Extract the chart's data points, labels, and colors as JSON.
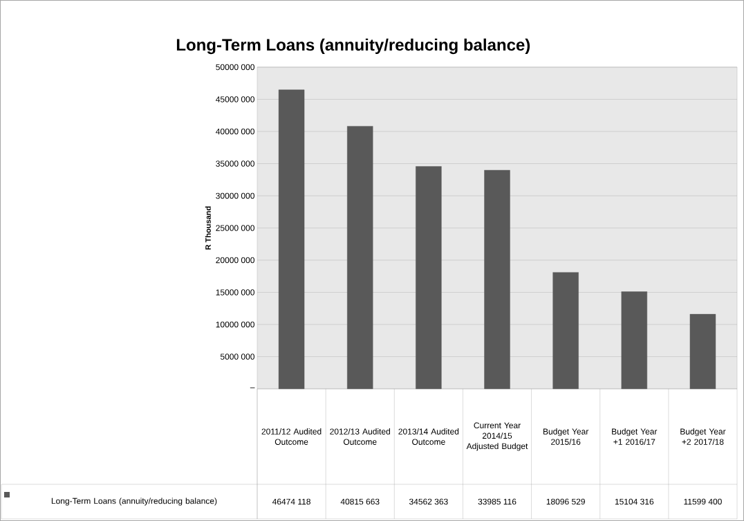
{
  "chart_data": {
    "type": "bar",
    "title": "Long-Term Loans (annuity/reducing balance)",
    "ylabel": "R Thousand",
    "categories": [
      "2011/12 Audited Outcome",
      "2012/13 Audited Outcome",
      "2013/14 Audited Outcome",
      "Current Year 2014/15 Adjusted Budget",
      "Budget Year 2015/16",
      "Budget Year +1 2016/17",
      "Budget Year +2 2017/18"
    ],
    "series": [
      {
        "name": "Long-Term Loans (annuity/reducing balance)",
        "color": "#595959",
        "values": [
          46474118,
          40815663,
          34562363,
          33985116,
          18096529,
          15104316,
          11599400
        ]
      }
    ],
    "ylim": [
      0,
      50000000
    ],
    "yticks": [
      {
        "value": 0,
        "label": "–"
      },
      {
        "value": 5000000,
        "label": "5000 000"
      },
      {
        "value": 10000000,
        "label": "10000 000"
      },
      {
        "value": 15000000,
        "label": "15000 000"
      },
      {
        "value": 20000000,
        "label": "20000 000"
      },
      {
        "value": 25000000,
        "label": "25000 000"
      },
      {
        "value": 30000000,
        "label": "30000 000"
      },
      {
        "value": 35000000,
        "label": "35000 000"
      },
      {
        "value": 40000000,
        "label": "40000 000"
      },
      {
        "value": 45000000,
        "label": "45000 000"
      },
      {
        "value": 50000000,
        "label": "50000 000"
      }
    ],
    "grid": "y",
    "legend": "bottom",
    "data_labels": true
  }
}
